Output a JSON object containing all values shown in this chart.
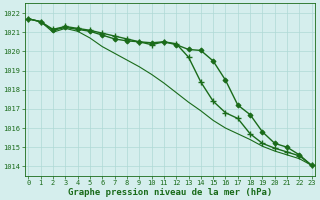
{
  "title": "Graphe pression niveau de la mer (hPa)",
  "x_ticks": [
    0,
    1,
    2,
    3,
    4,
    5,
    6,
    7,
    8,
    9,
    10,
    11,
    12,
    13,
    14,
    15,
    16,
    17,
    18,
    19,
    20,
    21,
    22,
    23
  ],
  "ylim": [
    1013.5,
    1022.5
  ],
  "xlim": [
    -0.3,
    23.3
  ],
  "yticks": [
    1014,
    1015,
    1016,
    1017,
    1018,
    1019,
    1020,
    1021,
    1022
  ],
  "line_diamond": {
    "x": [
      0,
      1,
      2,
      3,
      4,
      5,
      6,
      7,
      8,
      9,
      10,
      11,
      12,
      13,
      14,
      15,
      16,
      17,
      18,
      19,
      20,
      21,
      22,
      23
    ],
    "y": [
      1021.7,
      1021.55,
      1021.1,
      1021.25,
      1021.15,
      1021.05,
      1020.85,
      1020.65,
      1020.55,
      1020.5,
      1020.45,
      1020.5,
      1020.35,
      1020.1,
      1020.05,
      1019.5,
      1018.5,
      1017.2,
      1016.7,
      1015.8,
      1015.2,
      1015.0,
      1014.6,
      1014.05
    ],
    "color": "#1a6b1a",
    "marker": "D",
    "markersize": 2.5,
    "linewidth": 1.0
  },
  "line_plain": {
    "x": [
      0,
      1,
      2,
      3,
      4,
      5,
      6,
      7,
      8,
      9,
      10,
      11,
      12,
      13,
      14,
      15,
      16,
      17,
      18,
      19,
      20,
      21,
      22,
      23
    ],
    "y": [
      1021.7,
      1021.55,
      1021.0,
      1021.2,
      1021.05,
      1020.7,
      1020.25,
      1019.9,
      1019.55,
      1019.2,
      1018.8,
      1018.35,
      1017.85,
      1017.35,
      1016.9,
      1016.4,
      1016.0,
      1015.7,
      1015.4,
      1015.05,
      1014.8,
      1014.6,
      1014.4,
      1014.05
    ],
    "color": "#1a6b1a",
    "linewidth": 0.8
  },
  "line_plus": {
    "x": [
      0,
      1,
      2,
      3,
      4,
      5,
      6,
      7,
      8,
      9,
      10,
      11,
      12,
      13,
      14,
      15,
      16,
      17,
      18,
      19,
      20,
      21,
      22,
      23
    ],
    "y": [
      1021.7,
      1021.55,
      1021.15,
      1021.3,
      1021.2,
      1021.1,
      1020.95,
      1020.8,
      1020.65,
      1020.5,
      1020.35,
      1020.5,
      1020.4,
      1019.7,
      1018.4,
      1017.4,
      1016.8,
      1016.5,
      1015.7,
      1015.2,
      1014.95,
      1014.75,
      1014.55,
      1014.05
    ],
    "color": "#1a6b1a",
    "marker": "+",
    "markersize": 4.0,
    "linewidth": 1.0
  },
  "bg_color": "#d5eeed",
  "grid_color": "#afd9d5",
  "text_color": "#1a6b1a",
  "title_fontsize": 6.5,
  "tick_fontsize": 5.0
}
